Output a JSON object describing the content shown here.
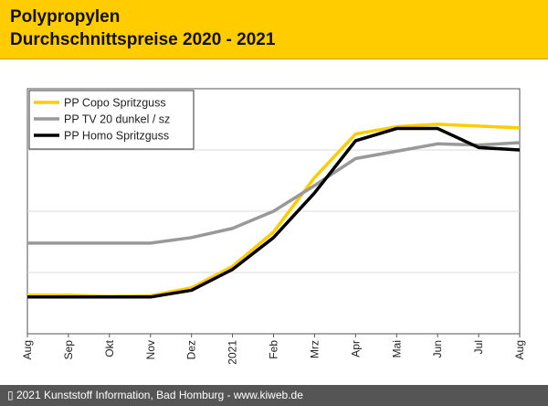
{
  "header": {
    "title_line1": "Polypropylen",
    "title_line2": "Durchschnittspreise 2020 - 2021"
  },
  "footer": {
    "text": "▯ 2021 Kunststoff Information, Bad Homburg - www.kiweb.de"
  },
  "colors": {
    "header_bg": "#ffcc00",
    "footer_bg": "#555555",
    "copo": "#ffcc00",
    "tv20": "#999999",
    "homo": "#000000"
  },
  "chart_data": {
    "type": "line",
    "title": "Polypropylen Durchschnittspreise 2020 - 2021",
    "xlabel": "",
    "ylabel": "",
    "ylim": [
      0,
      4
    ],
    "grid": true,
    "legend_position": "top-left",
    "categories": [
      "Aug",
      "Sep",
      "Okt",
      "Nov",
      "Dez",
      "2021",
      "Feb",
      "Mrz",
      "Apr",
      "Mai",
      "Jun",
      "Jul",
      "Aug"
    ],
    "series": [
      {
        "name": "PP Copo Spritzguss",
        "color": "#ffcc00",
        "values": [
          0.63,
          0.63,
          0.61,
          0.62,
          0.75,
          1.1,
          1.66,
          2.55,
          3.26,
          3.38,
          3.42,
          3.39,
          3.36
        ]
      },
      {
        "name": "PP TV 20 dunkel / sz",
        "color": "#999999",
        "values": [
          1.48,
          1.48,
          1.48,
          1.48,
          1.57,
          1.72,
          2.0,
          2.42,
          2.86,
          2.98,
          3.1,
          3.08,
          3.12
        ]
      },
      {
        "name": "PP Homo Spritzguss",
        "color": "#000000",
        "values": [
          0.6,
          0.6,
          0.6,
          0.6,
          0.71,
          1.05,
          1.57,
          2.3,
          3.15,
          3.35,
          3.35,
          3.04,
          3.0
        ]
      }
    ]
  }
}
